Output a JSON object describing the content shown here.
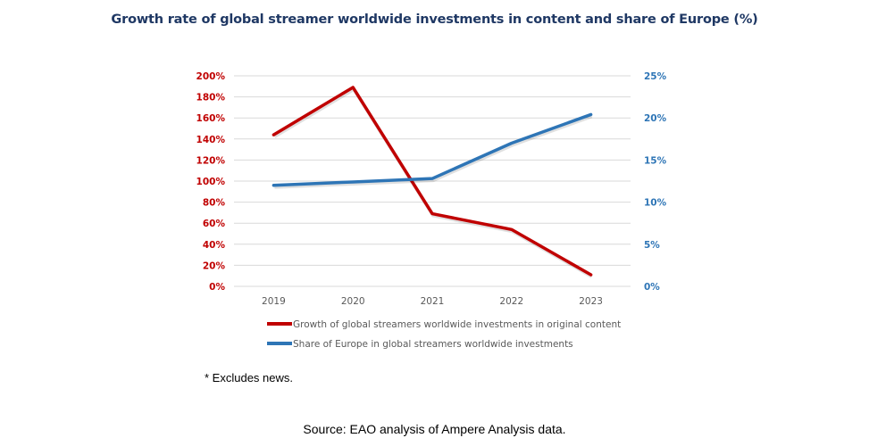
{
  "chart_data": {
    "type": "line",
    "title": "Growth rate of global streamer worldwide investments in content and share of Europe (%)",
    "categories": [
      "2019",
      "2020",
      "2021",
      "2022",
      "2023"
    ],
    "xlabel": "",
    "ylabel": "",
    "y_left": {
      "ylim": [
        0,
        200
      ],
      "ticks": [
        0,
        20,
        40,
        60,
        80,
        100,
        120,
        140,
        160,
        180,
        200
      ],
      "tick_labels": [
        "0%",
        "20%",
        "40%",
        "60%",
        "80%",
        "100%",
        "120%",
        "140%",
        "160%",
        "180%",
        "200%"
      ],
      "color": "#c00000"
    },
    "y_right": {
      "ylim": [
        0,
        25
      ],
      "ticks": [
        0,
        5,
        10,
        15,
        20,
        25
      ],
      "tick_labels": [
        "0%",
        "5%",
        "10%",
        "15%",
        "20%",
        "25%"
      ],
      "color": "#2e75b6"
    },
    "grid": true,
    "legend_position": "bottom",
    "series": [
      {
        "name": "Growth of global streamers worldwide investments in original content",
        "axis": "left",
        "color": "#c00000",
        "values": [
          144,
          189,
          69,
          54,
          11
        ]
      },
      {
        "name": "Share of Europe in global streamers worldwide investments",
        "axis": "right",
        "color": "#2e75b6",
        "values": [
          12.0,
          12.4,
          12.8,
          17.0,
          20.4
        ]
      }
    ]
  },
  "footnote": "* Excludes news.",
  "source": "Source: EAO analysis of Ampere Analysis data."
}
